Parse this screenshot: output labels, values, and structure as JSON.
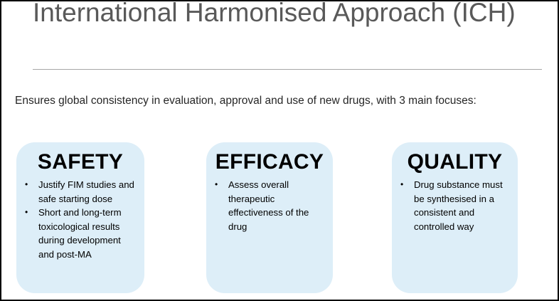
{
  "slide": {
    "title": "International Harmonised Approach (ICH)",
    "intro": "Ensures global consistency in evaluation, approval and use of new drugs, with 3 main focuses:"
  },
  "focuses": [
    {
      "heading": "SAFETY",
      "bullets": [
        "Justify FIM studies and safe starting dose",
        "Short and long-term toxicological results during development and post-MA"
      ]
    },
    {
      "heading": "EFFICACY",
      "bullets": [
        "Assess overall therapeutic effectiveness of the drug"
      ]
    },
    {
      "heading": "QUALITY",
      "bullets": [
        "Drug substance must be synthesised in a consistent and controlled way"
      ]
    }
  ],
  "colors": {
    "card_fill": "#ddeef8",
    "title_text": "#595959",
    "rule": "#a6a6a6"
  }
}
